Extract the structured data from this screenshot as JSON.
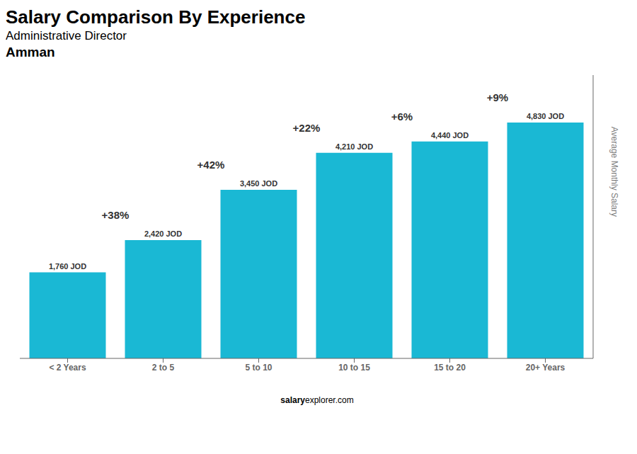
{
  "chart_data": {
    "type": "bar",
    "title": "Salary Comparison By Experience",
    "subtitle": "Administrative Director",
    "annotations": [
      "Amman",
      "salary",
      "explorer.com"
    ],
    "ylabel": "Average Monthly Salary",
    "categories": [
      "< 2 Years",
      "2 to 5",
      "5 to 10",
      "10 to 15",
      "15 to 20",
      "20+ Years"
    ],
    "values": [
      1760,
      2420,
      3450,
      4210,
      4440,
      4830
    ],
    "value_labels": [
      "1,760 JOD",
      "2,420 JOD",
      "3,450 JOD",
      "4,210 JOD",
      "4,440 JOD",
      "4,830 JOD"
    ],
    "pct_changes": [
      null,
      "+38%",
      "+42%",
      "+22%",
      "+6%",
      "+9%"
    ],
    "color": "#1ab8d4",
    "ylim": [
      0,
      5800
    ],
    "grid": false,
    "data_labels": true,
    "tick_labels": "x"
  }
}
